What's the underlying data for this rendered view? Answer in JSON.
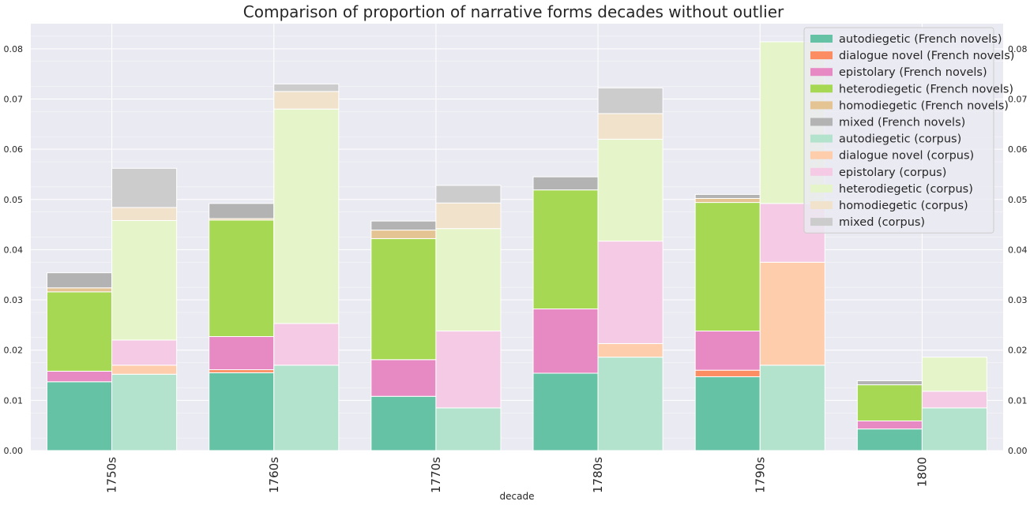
{
  "chart_data": {
    "type": "bar",
    "stacked": true,
    "grouped": true,
    "title": "Comparison of proportion of narrative forms decades without outlier",
    "xlabel": "decade",
    "ylabel": "",
    "categories": [
      "1750s",
      "1760s",
      "1770s",
      "1780s",
      "1790s",
      "1800"
    ],
    "ylim": [
      0,
      0.085
    ],
    "yticks": [
      "0.00",
      "0.01",
      "0.02",
      "0.03",
      "0.04",
      "0.05",
      "0.06",
      "0.07",
      "0.08"
    ],
    "yticks_right": [
      "0.00",
      "0.01",
      "0.02",
      "0.03",
      "0.04",
      "0.05",
      "0.06",
      "0.07",
      "0.08"
    ],
    "grid": true,
    "legend_position": "top-right",
    "groups": [
      {
        "group": "French novels",
        "series": [
          {
            "name": "autodiegetic (French novels)",
            "color": "#66c2a5",
            "values": [
              0.0137,
              0.0155,
              0.0108,
              0.0154,
              0.0147,
              0.0043
            ]
          },
          {
            "name": "dialogue novel (French novels)",
            "color": "#fc8d62",
            "values": [
              0.0,
              0.0006,
              0.0,
              0.0,
              0.0013,
              0.0
            ]
          },
          {
            "name": "epistolary (French novels)",
            "color": "#e78ac3",
            "values": [
              0.0021,
              0.0066,
              0.0073,
              0.0128,
              0.0078,
              0.0016
            ]
          },
          {
            "name": "heterodiegetic (French novels)",
            "color": "#a6d854",
            "values": [
              0.0158,
              0.0232,
              0.0241,
              0.0237,
              0.0256,
              0.0072
            ]
          },
          {
            "name": "homodiegetic (French novels)",
            "color": "#e5c494",
            "values": [
              0.0008,
              0.0003,
              0.0017,
              0.0,
              0.0008,
              0.0
            ]
          },
          {
            "name": "mixed (French novels)",
            "color": "#b3b3b3",
            "values": [
              0.003,
              0.003,
              0.0018,
              0.0026,
              0.0008,
              0.0008
            ]
          }
        ]
      },
      {
        "group": "corpus",
        "series": [
          {
            "name": "autodiegetic (corpus)",
            "color": "#b3e2cd",
            "values": [
              0.0152,
              0.017,
              0.0085,
              0.0186,
              0.017,
              0.0085
            ]
          },
          {
            "name": "dialogue novel (corpus)",
            "color": "#fdcdac",
            "values": [
              0.0018,
              0.0,
              0.0,
              0.0027,
              0.0205,
              0.0
            ]
          },
          {
            "name": "epistolary (corpus)",
            "color": "#f4cae4",
            "values": [
              0.005,
              0.0083,
              0.0153,
              0.0204,
              0.0117,
              0.0033
            ]
          },
          {
            "name": "heterodiegetic (corpus)",
            "color": "#e6f5c9",
            "values": [
              0.0238,
              0.0427,
              0.0204,
              0.0203,
              0.0322,
              0.0068
            ]
          },
          {
            "name": "homodiegetic (corpus)",
            "color": "#f1e2cc",
            "values": [
              0.0026,
              0.0035,
              0.0051,
              0.0051,
              0.0,
              0.0
            ]
          },
          {
            "name": "mixed (corpus)",
            "color": "#cccccc",
            "values": [
              0.0078,
              0.0015,
              0.0035,
              0.0051,
              0.0,
              0.0
            ]
          }
        ]
      }
    ]
  }
}
